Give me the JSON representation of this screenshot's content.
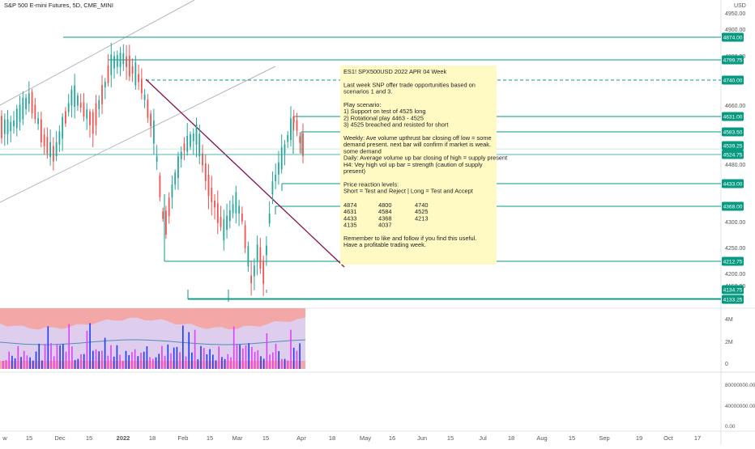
{
  "header": {
    "symbol_title": "S&P 500 E-mini Futures, 5D, CME_MINI",
    "currency": "USD"
  },
  "colors": {
    "level_line": "#089981",
    "level_badge": "#089981",
    "trend_line": "#880e4f",
    "channel_line": "#b2b5be",
    "up_bar": "#26a69a",
    "down_bar": "#ef5350",
    "note_bg": "#fff9c4",
    "volume_panel_bg": "#f4a7a7",
    "volume_band": "#dcd2f5",
    "volume_bar_up": "#1e3cff",
    "volume_bar_down": "#e040fb"
  },
  "price_axis": {
    "ticks": [
      "4950.00",
      "4900.00",
      "4820.00",
      "4660.00",
      "4480.00",
      "4300.00",
      "4250.00",
      "4200.00",
      "4150.00"
    ],
    "badges": [
      "4874.00",
      "4799.75",
      "4740.00",
      "4631.00",
      "4583.50",
      "4539.25",
      "4524.75",
      "4433.00",
      "4368.00",
      "4212.75",
      "4134.75",
      "4133.25"
    ]
  },
  "volume_axis": {
    "ticks": [
      "4M",
      "2M",
      "0"
    ]
  },
  "indicator_axis": {
    "ticks": [
      "80000000.00",
      "40000000.00",
      "0.00"
    ]
  },
  "time_axis": {
    "labels": [
      "w",
      "15",
      "Dec",
      "15",
      "2022",
      "18",
      "Feb",
      "15",
      "Mar",
      "15",
      "Apr",
      "18",
      "May",
      "16",
      "Jun",
      "15",
      "Jul",
      "18",
      "Aug",
      "15",
      "Sep",
      "19",
      "Oct",
      "17"
    ]
  },
  "note": {
    "lines": [
      "ES1! SPX500USD 2022 APR 04 Week",
      "",
      "Last week SNP offer trade opportunities based on",
      "scenarios 1 and 3.",
      "",
      "Play scenario:",
      "1) Support on test of 4525 long",
      "2) Rotational play 4463 - 4525",
      "3)  4525 breached and resisted for short",
      "",
      "Weekly: Ave volume upthrust bar closing off low = some",
      "demand present. next bar will confirm if market is weak.",
      "some demand",
      "Daily: Average volume up bar closing of high = supply present",
      "H4: Vey high vol up bar = strength (caution of supply",
      "present)",
      "",
      "Price reaction levels:",
      "Short = Test and Reject    |    Long = Test and Accept",
      ""
    ],
    "levels_table": [
      [
        "4874",
        "4800",
        "4740"
      ],
      [
        "4631",
        "4584",
        "4525"
      ],
      [
        "4433",
        "4368",
        "4213"
      ],
      [
        "4135",
        "4037",
        ""
      ]
    ],
    "closing_lines": [
      "Remember to like and follow if you find this useful.",
      "Have a profitable trading week."
    ]
  },
  "chart_data": {
    "type": "candlestick",
    "title": "S&P 500 E-mini Futures, 5D, CME_MINI",
    "ylabel": "USD",
    "ylim": [
      4115,
      4980
    ],
    "horizontal_levels": [
      4874.0,
      4799.75,
      4740.0,
      4631.0,
      4583.5,
      4539.25,
      4524.75,
      4433.0,
      4368.0,
      4212.75,
      4134.75,
      4133.25
    ],
    "current_price": 4524.75,
    "price_path": [
      [
        "Nov 10",
        4600
      ],
      [
        "Nov 19",
        4690
      ],
      [
        "Nov 26",
        4560
      ],
      [
        "Dec 1",
        4520
      ],
      [
        "Dec 10",
        4700
      ],
      [
        "Dec 20",
        4610
      ],
      [
        "Dec 29",
        4790
      ],
      [
        "Jan 4",
        4805
      ],
      [
        "Jan 12",
        4740
      ],
      [
        "Jan 19",
        4580
      ],
      [
        "Jan 24",
        4300
      ],
      [
        "Jan 28",
        4420
      ],
      [
        "Feb 2",
        4540
      ],
      [
        "Feb 9",
        4580
      ],
      [
        "Feb 15",
        4420
      ],
      [
        "Feb 22",
        4300
      ],
      [
        "Feb 28",
        4380
      ],
      [
        "Mar 3",
        4340
      ],
      [
        "Mar 8",
        4160
      ],
      [
        "Mar 11",
        4250
      ],
      [
        "Mar 14",
        4180
      ],
      [
        "Mar 18",
        4420
      ],
      [
        "Mar 23",
        4520
      ],
      [
        "Mar 29",
        4630
      ],
      [
        "Apr 1",
        4550
      ]
    ],
    "volume_ticks": [
      "4M",
      "2M",
      "0"
    ],
    "grid": false,
    "legend": "none"
  }
}
